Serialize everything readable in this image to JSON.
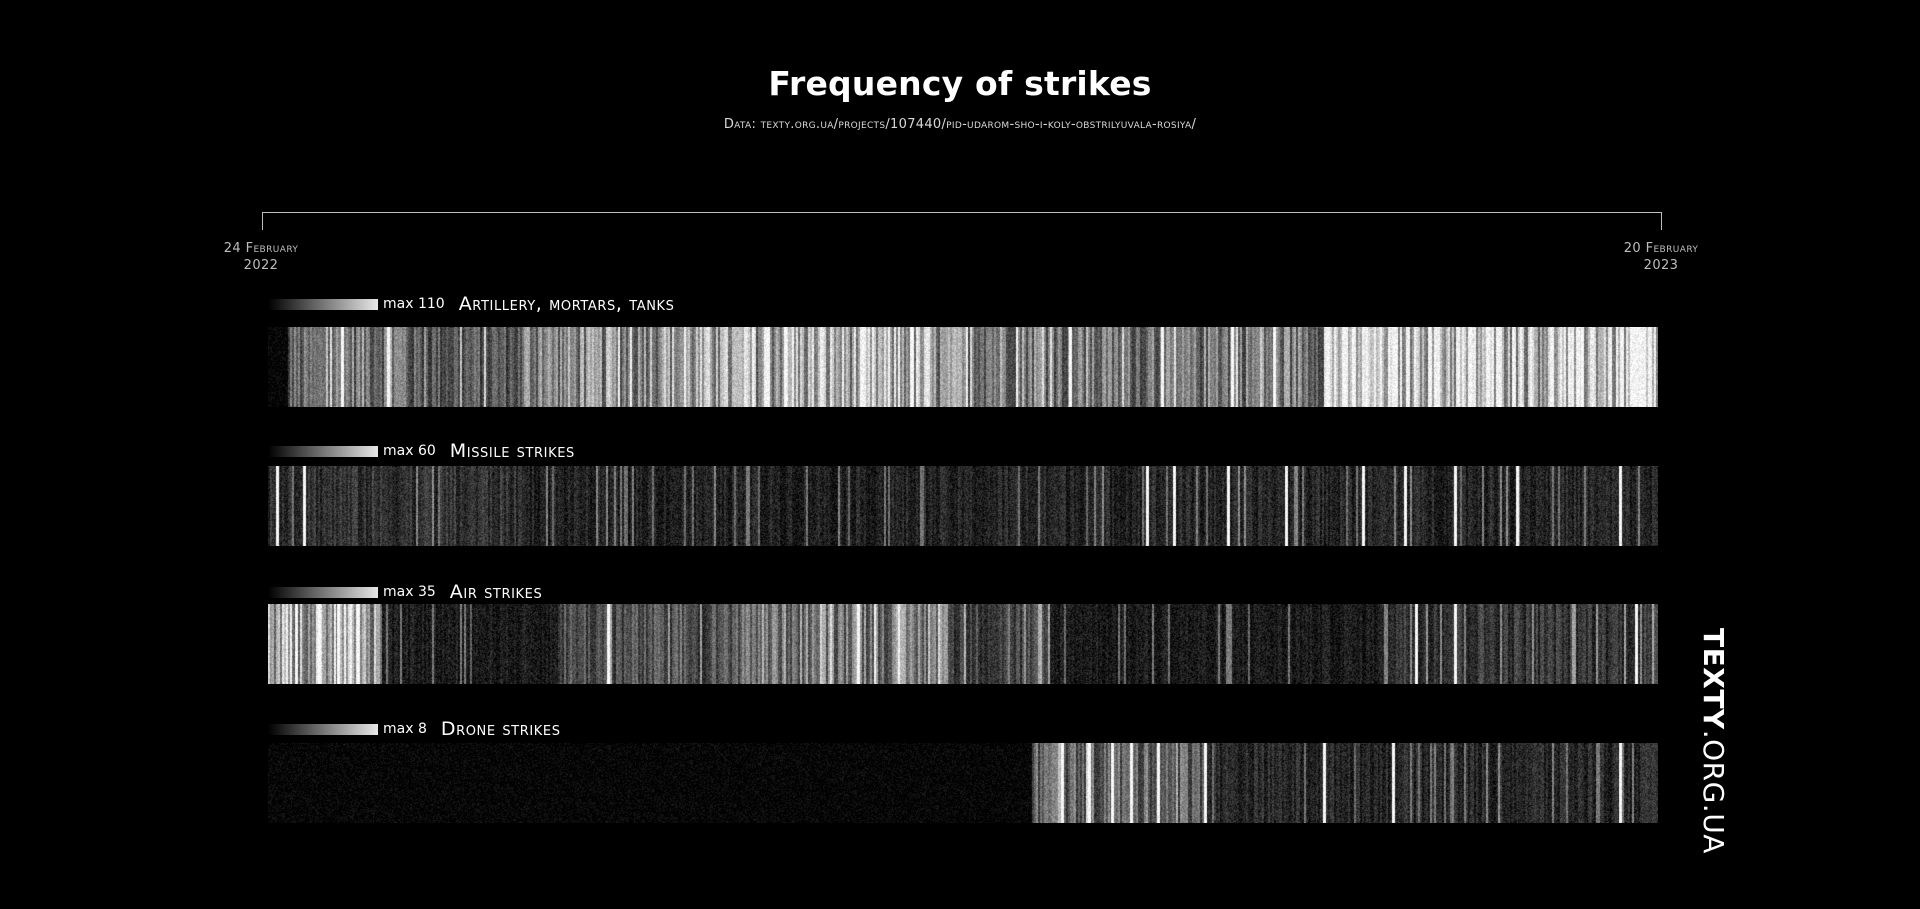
{
  "chart_data": {
    "type": "heatmap",
    "title": "Frequency of strikes",
    "subtitle": "Data: texty.org.ua/projects/107440/pid-udarom-sho-i-koly-obstrilyuvala-rosiya/",
    "x_start_label": [
      "24 February",
      "2022"
    ],
    "x_end_label": [
      "20 February",
      "2023"
    ],
    "x_start": "2022-02-24",
    "x_end": "2023-02-20",
    "scale_colors": [
      "#000000",
      "#ffffff"
    ],
    "series": [
      {
        "name": "Artillery, mortars, tanks",
        "max_label": "max 110",
        "max": 110,
        "bursts": [
          {
            "from": "2022-03-01",
            "to": "2022-03-10",
            "value": 0.45
          },
          {
            "from": "2022-03-10",
            "to": "2022-04-01",
            "value": 0.55
          },
          {
            "from": "2022-04-01",
            "to": "2022-05-01",
            "value": 0.4
          },
          {
            "from": "2022-05-01",
            "to": "2022-06-01",
            "value": 0.6
          },
          {
            "from": "2022-06-01",
            "to": "2022-07-05",
            "value": 0.7
          },
          {
            "from": "2022-07-05",
            "to": "2022-08-15",
            "value": 0.75
          },
          {
            "from": "2022-08-15",
            "to": "2022-09-15",
            "value": 0.6
          },
          {
            "from": "2022-09-15",
            "to": "2022-10-25",
            "value": 0.5
          },
          {
            "from": "2022-10-25",
            "to": "2022-11-25",
            "value": 0.55
          },
          {
            "from": "2022-11-25",
            "to": "2022-12-25",
            "value": 0.95
          },
          {
            "from": "2022-12-25",
            "to": "2023-02-01",
            "value": 0.85
          },
          {
            "from": "2023-02-01",
            "to": "2023-02-20",
            "value": 0.9
          }
        ],
        "peaks": [
          "2022-03-15",
          "2022-03-27",
          "2022-07-08",
          "2022-08-10",
          "2022-09-20",
          "2022-10-14",
          "2022-11-01",
          "2022-11-12",
          "2023-01-31"
        ]
      },
      {
        "name": "Missile strikes",
        "max_label": "max 60",
        "max": 60,
        "bursts": [
          {
            "from": "2022-02-24",
            "to": "2022-05-01",
            "value": 0.22
          },
          {
            "from": "2022-05-01",
            "to": "2022-09-01",
            "value": 0.15
          },
          {
            "from": "2022-09-01",
            "to": "2023-02-20",
            "value": 0.17
          }
        ],
        "peaks": [
          "2022-02-26",
          "2022-03-05",
          "2022-10-10",
          "2022-10-17",
          "2022-10-31",
          "2022-11-15",
          "2022-12-05",
          "2022-12-16",
          "2022-12-29",
          "2023-01-14",
          "2023-02-10"
        ]
      },
      {
        "name": "Air strikes",
        "max_label": "max 35",
        "max": 35,
        "bursts": [
          {
            "from": "2022-02-24",
            "to": "2022-03-25",
            "value": 0.75
          },
          {
            "from": "2022-03-25",
            "to": "2022-05-10",
            "value": 0.12
          },
          {
            "from": "2022-05-10",
            "to": "2022-06-25",
            "value": 0.35
          },
          {
            "from": "2022-06-25",
            "to": "2022-08-20",
            "value": 0.55
          },
          {
            "from": "2022-08-20",
            "to": "2022-09-15",
            "value": 0.3
          },
          {
            "from": "2022-09-15",
            "to": "2022-12-10",
            "value": 0.12
          },
          {
            "from": "2022-12-10",
            "to": "2023-02-20",
            "value": 0.25
          }
        ],
        "peaks": [
          "2022-03-03",
          "2022-03-09",
          "2022-03-14",
          "2022-03-19",
          "2022-05-23",
          "2022-07-27",
          "2022-12-19",
          "2022-12-29",
          "2023-02-14"
        ]
      },
      {
        "name": "Drone strikes",
        "max_label": "max 8",
        "max": 8,
        "start": "2022-09-10",
        "bursts": [
          {
            "from": "2022-09-10",
            "to": "2022-10-25",
            "value": 0.45
          },
          {
            "from": "2022-10-25",
            "to": "2023-02-20",
            "value": 0.18
          }
        ],
        "peaks": [
          "2022-09-18",
          "2022-09-25",
          "2022-10-01",
          "2022-10-06",
          "2022-10-13",
          "2022-10-25",
          "2022-11-25",
          "2022-12-13",
          "2023-02-10"
        ]
      }
    ]
  },
  "brand": {
    "bold": "TEXTY",
    "light": ".ORG.UA"
  }
}
